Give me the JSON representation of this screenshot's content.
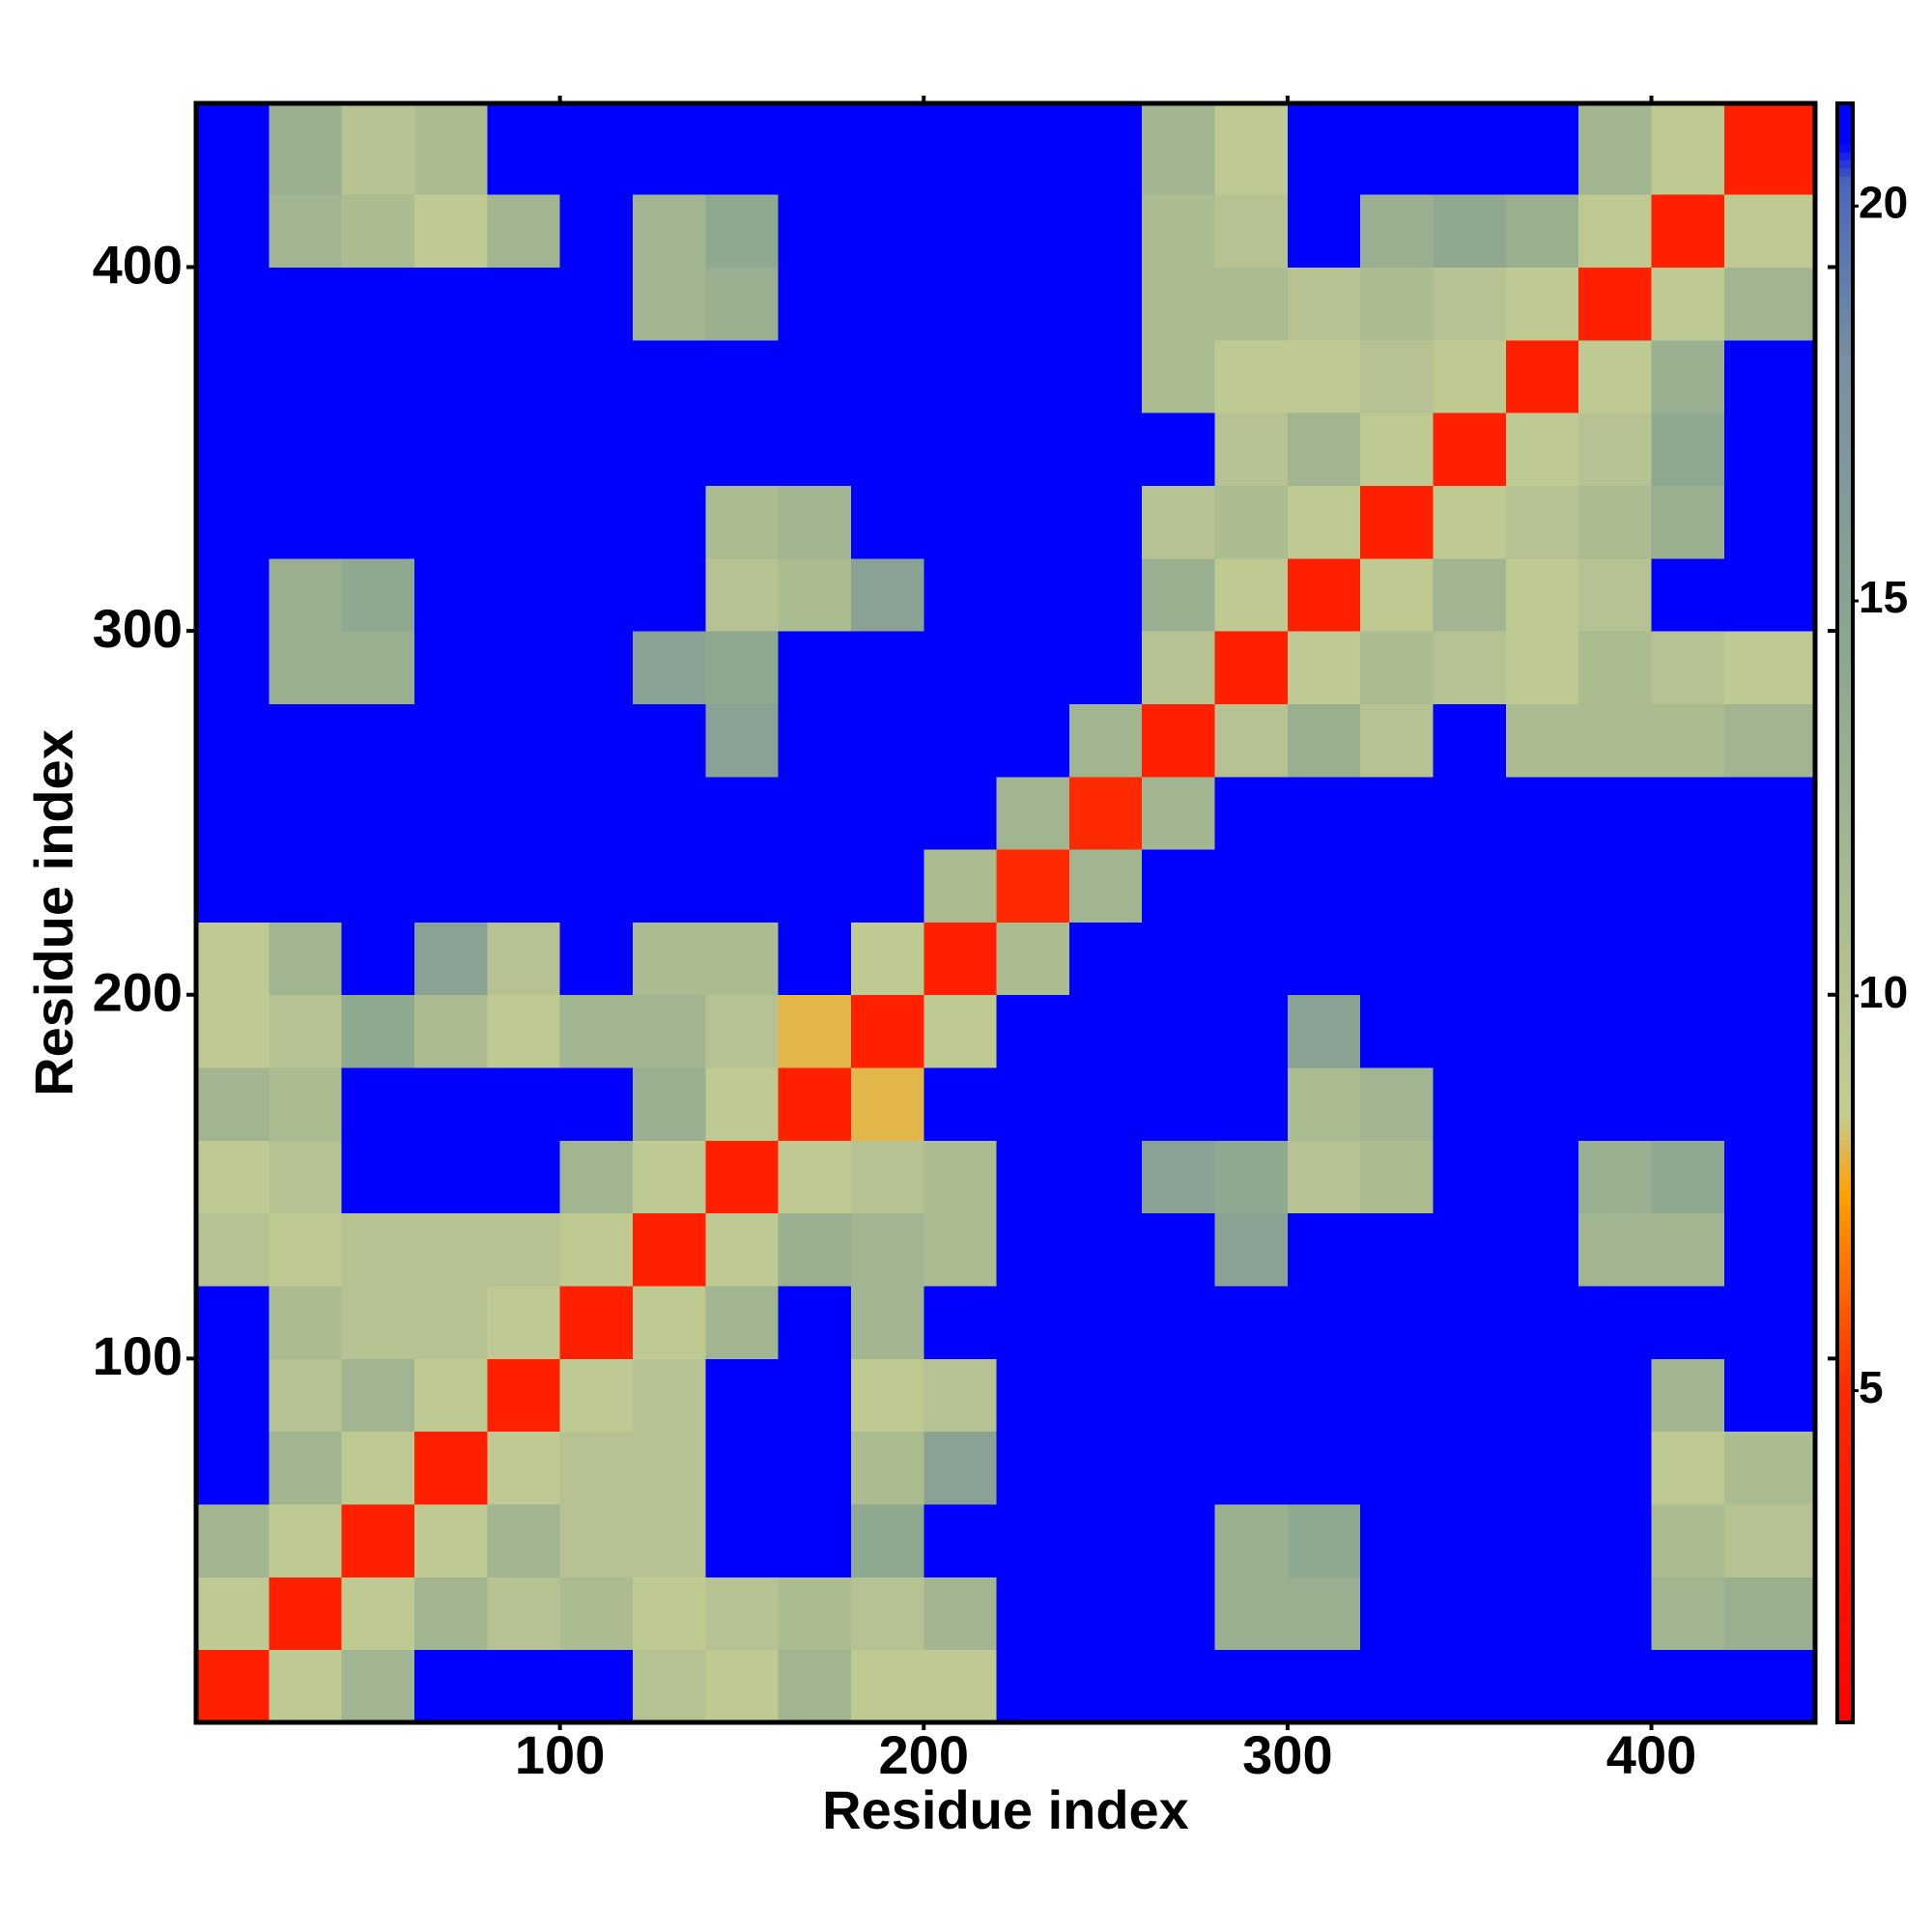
{
  "chart_data": {
    "type": "heatmap",
    "xlabel": "Residue index",
    "ylabel": "Residue index",
    "x_edges": [
      0,
      20,
      40,
      60,
      80,
      100,
      120,
      140,
      160,
      180,
      200,
      220,
      240,
      260,
      280,
      300,
      320,
      340,
      360,
      380,
      400,
      420,
      445
    ],
    "y_edges": [
      0,
      20,
      40,
      60,
      80,
      100,
      120,
      140,
      160,
      180,
      200,
      220,
      240,
      260,
      280,
      300,
      320,
      340,
      360,
      380,
      400,
      420,
      445
    ],
    "xlim": [
      0,
      445
    ],
    "ylim": [
      0,
      445
    ],
    "xticks": [
      100,
      200,
      300,
      400
    ],
    "yticks": [
      100,
      200,
      300,
      400
    ],
    "clim": [
      0.8,
      21.3
    ],
    "cticks": [
      5,
      10,
      15,
      20
    ],
    "colorscale": [
      [
        0.8,
        "#ff0000"
      ],
      [
        5,
        "#ff2a00"
      ],
      [
        7.5,
        "#ffa000"
      ],
      [
        8.5,
        "#c4cc92"
      ],
      [
        14,
        "#8fa890"
      ],
      [
        18,
        "#7890a0"
      ],
      [
        20.3,
        "#4a68b8"
      ],
      [
        20.8,
        "#0000ff"
      ]
    ],
    "z": [
      [
        4,
        9,
        12,
        21,
        21,
        21,
        10,
        9,
        12,
        9,
        9,
        21,
        21,
        21,
        21,
        21,
        21,
        21,
        21,
        21,
        21,
        21
      ],
      [
        9,
        4,
        9,
        12,
        10,
        11,
        9,
        10,
        11,
        10,
        12,
        21,
        21,
        21,
        13,
        13,
        21,
        21,
        21,
        21,
        12,
        13
      ],
      [
        12,
        9,
        4,
        9,
        12,
        10,
        10,
        21,
        21,
        14,
        21,
        21,
        21,
        21,
        13,
        14,
        21,
        21,
        21,
        21,
        11,
        10
      ],
      [
        21,
        12,
        9,
        4,
        9,
        10,
        10,
        21,
        21,
        11,
        15,
        21,
        21,
        21,
        21,
        21,
        21,
        21,
        21,
        21,
        9,
        11
      ],
      [
        21,
        10,
        12,
        9,
        4,
        9,
        10,
        21,
        21,
        9,
        10,
        21,
        21,
        21,
        21,
        21,
        21,
        21,
        21,
        21,
        12,
        21
      ],
      [
        21,
        11,
        10,
        10,
        9,
        4,
        9,
        12,
        21,
        12,
        21,
        21,
        21,
        21,
        21,
        21,
        21,
        21,
        21,
        21,
        21,
        21
      ],
      [
        10,
        9,
        10,
        10,
        10,
        9,
        4,
        9,
        13,
        12,
        11,
        21,
        21,
        21,
        15,
        21,
        21,
        21,
        21,
        12,
        12,
        21
      ],
      [
        9,
        10,
        21,
        21,
        21,
        12,
        9,
        4,
        9,
        10,
        11,
        21,
        21,
        15,
        14,
        10,
        11,
        21,
        21,
        13,
        14,
        21
      ],
      [
        12,
        11,
        21,
        21,
        21,
        21,
        13,
        9,
        4,
        8,
        21,
        21,
        21,
        21,
        21,
        11,
        12,
        21,
        21,
        21,
        21,
        21
      ],
      [
        9,
        10,
        14,
        11,
        9,
        12,
        12,
        10,
        8,
        4,
        9,
        21,
        21,
        21,
        21,
        15,
        21,
        21,
        21,
        21,
        21,
        21
      ],
      [
        9,
        12,
        21,
        15,
        10,
        21,
        11,
        11,
        21,
        9,
        4,
        11,
        21,
        21,
        21,
        21,
        21,
        21,
        21,
        21,
        21,
        21
      ],
      [
        21,
        21,
        21,
        21,
        21,
        21,
        21,
        21,
        21,
        21,
        11,
        5,
        12,
        21,
        21,
        21,
        21,
        21,
        21,
        21,
        21,
        21
      ],
      [
        21,
        21,
        21,
        21,
        21,
        21,
        21,
        21,
        21,
        21,
        21,
        12,
        5,
        12,
        21,
        21,
        21,
        21,
        21,
        21,
        21,
        21
      ],
      [
        21,
        21,
        21,
        21,
        21,
        21,
        21,
        15,
        21,
        21,
        21,
        21,
        12,
        4,
        10,
        13,
        10,
        21,
        11,
        11,
        11,
        12
      ],
      [
        21,
        13,
        13,
        21,
        21,
        21,
        15,
        14,
        21,
        21,
        21,
        21,
        21,
        10,
        4,
        9,
        11,
        10,
        9,
        11,
        10,
        9
      ],
      [
        21,
        13,
        14,
        21,
        21,
        21,
        21,
        10,
        11,
        15,
        21,
        21,
        21,
        13,
        9,
        4,
        9,
        12,
        9,
        10,
        21,
        21
      ],
      [
        21,
        21,
        21,
        21,
        21,
        21,
        21,
        11,
        12,
        21,
        21,
        21,
        21,
        10,
        11,
        9,
        4,
        9,
        10,
        11,
        13,
        21
      ],
      [
        21,
        21,
        21,
        21,
        21,
        21,
        21,
        21,
        21,
        21,
        21,
        21,
        21,
        21,
        10,
        12,
        9,
        4,
        9,
        10,
        14,
        21
      ],
      [
        21,
        21,
        21,
        21,
        21,
        21,
        21,
        21,
        21,
        21,
        21,
        21,
        21,
        11,
        9,
        9,
        10,
        9,
        4,
        9,
        13,
        21
      ],
      [
        21,
        21,
        21,
        21,
        21,
        21,
        12,
        13,
        21,
        21,
        21,
        21,
        21,
        11,
        11,
        10,
        11,
        10,
        9,
        4,
        9,
        12
      ],
      [
        21,
        12,
        11,
        9,
        12,
        21,
        12,
        14,
        21,
        21,
        21,
        21,
        21,
        11,
        10,
        21,
        13,
        14,
        13,
        9,
        4,
        9
      ],
      [
        21,
        13,
        10,
        11,
        21,
        21,
        21,
        21,
        21,
        21,
        21,
        21,
        21,
        12,
        9,
        21,
        21,
        21,
        21,
        12,
        9,
        4
      ]
    ]
  }
}
